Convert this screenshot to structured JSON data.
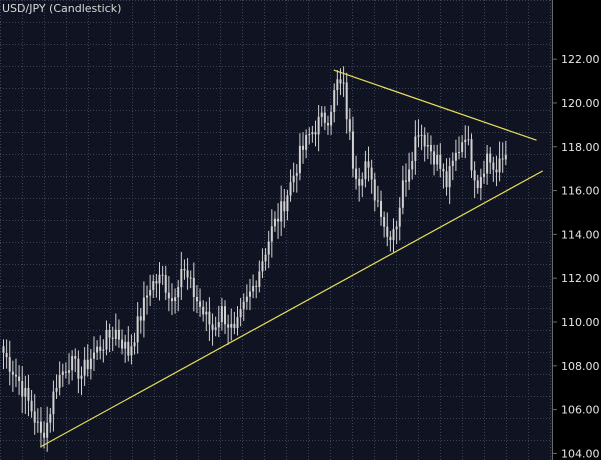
{
  "chart_data": {
    "type": "candlestick",
    "title": "USD/JPY (Candlestick)",
    "xlabel": "",
    "ylabel": "",
    "ylim": [
      103.7,
      124.7
    ],
    "yticks": [
      104,
      106,
      108,
      110,
      112,
      114,
      116,
      118,
      120,
      122
    ],
    "ytick_labels": [
      "104.00",
      "106.00",
      "108.00",
      "110.00",
      "112.00",
      "114.00",
      "116.00",
      "118.00",
      "120.00",
      "122.00"
    ],
    "grid": true,
    "axis_position": "right",
    "anchors": [
      [
        0,
        108.6
      ],
      [
        5,
        107.3
      ],
      [
        9,
        106.0
      ],
      [
        12,
        104.8
      ],
      [
        14,
        105.4
      ],
      [
        17,
        107.3
      ],
      [
        21,
        108.2
      ],
      [
        25,
        107.6
      ],
      [
        28,
        108.4
      ],
      [
        33,
        109.2
      ],
      [
        36,
        109.6
      ],
      [
        40,
        108.6
      ],
      [
        44,
        110.3
      ],
      [
        47,
        111.7
      ],
      [
        51,
        112.0
      ],
      [
        54,
        111.0
      ],
      [
        57,
        112.5
      ],
      [
        60,
        111.6
      ],
      [
        64,
        110.4
      ],
      [
        67,
        109.7
      ],
      [
        70,
        110.5
      ],
      [
        74,
        109.4
      ],
      [
        77,
        110.6
      ],
      [
        80,
        111.6
      ],
      [
        83,
        112.9
      ],
      [
        86,
        114.2
      ],
      [
        89,
        115.1
      ],
      [
        92,
        116.3
      ],
      [
        95,
        117.6
      ],
      [
        98,
        118.5
      ],
      [
        101,
        119.1
      ],
      [
        104,
        119.4
      ],
      [
        107,
        120.9
      ],
      [
        109,
        120.6
      ],
      [
        112,
        117.3
      ],
      [
        114,
        116.6
      ],
      [
        116,
        117.3
      ],
      [
        118,
        116.2
      ],
      [
        121,
        115.2
      ],
      [
        123,
        113.9
      ],
      [
        126,
        114.6
      ],
      [
        128,
        116.2
      ],
      [
        131,
        117.8
      ],
      [
        133,
        118.9
      ],
      [
        136,
        118.1
      ],
      [
        139,
        117.4
      ],
      [
        142,
        116.3
      ],
      [
        145,
        117.6
      ],
      [
        148,
        118.7
      ],
      [
        150,
        117.3
      ],
      [
        152,
        116.4
      ],
      [
        155,
        117.6
      ],
      [
        158,
        116.8
      ],
      [
        161,
        117.7
      ]
    ],
    "overlays": [
      {
        "name": "support-trendline",
        "color": "#e6e05a",
        "from": [
          12,
          104.3
        ],
        "to": [
          173,
          116.9
        ]
      },
      {
        "name": "resistance-trendline",
        "color": "#e6e05a",
        "from": [
          106,
          121.5
        ],
        "to": [
          171,
          118.3
        ]
      }
    ],
    "colors": {
      "background": "#000000",
      "plot_background": "#101322",
      "grid": "#3c4156",
      "candles": "#d2d2d2",
      "axis_background": "#000000",
      "axis_line": "#6a6a6a",
      "tick_text": "#e6e6e6",
      "title_text": "#d8d8d8"
    }
  }
}
